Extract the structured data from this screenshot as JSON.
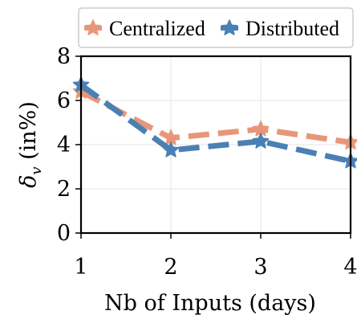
{
  "chart_data": {
    "type": "line",
    "x": [
      1,
      2,
      3,
      4
    ],
    "xticks": [
      "1",
      "2",
      "3",
      "4"
    ],
    "yticks": [
      "0",
      "2",
      "4",
      "6",
      "8"
    ],
    "xlim": [
      1,
      4
    ],
    "ylim": [
      0,
      8
    ],
    "xlabel": "Nb of Inputs (days)",
    "ylabel": "δv (in%)",
    "ylabel_symbol": "δ",
    "ylabel_subscript": "v",
    "ylabel_rest": " (in%)",
    "grid": true,
    "legend_position": "top",
    "series": [
      {
        "name": "Centralized",
        "values": [
          6.4,
          4.3,
          4.7,
          4.1
        ],
        "color": "#E8967A",
        "line_style": "dashed",
        "marker": "star"
      },
      {
        "name": "Distributed",
        "values": [
          6.7,
          3.75,
          4.15,
          3.25
        ],
        "color": "#4A80B4",
        "line_style": "dashed",
        "marker": "star"
      }
    ]
  }
}
